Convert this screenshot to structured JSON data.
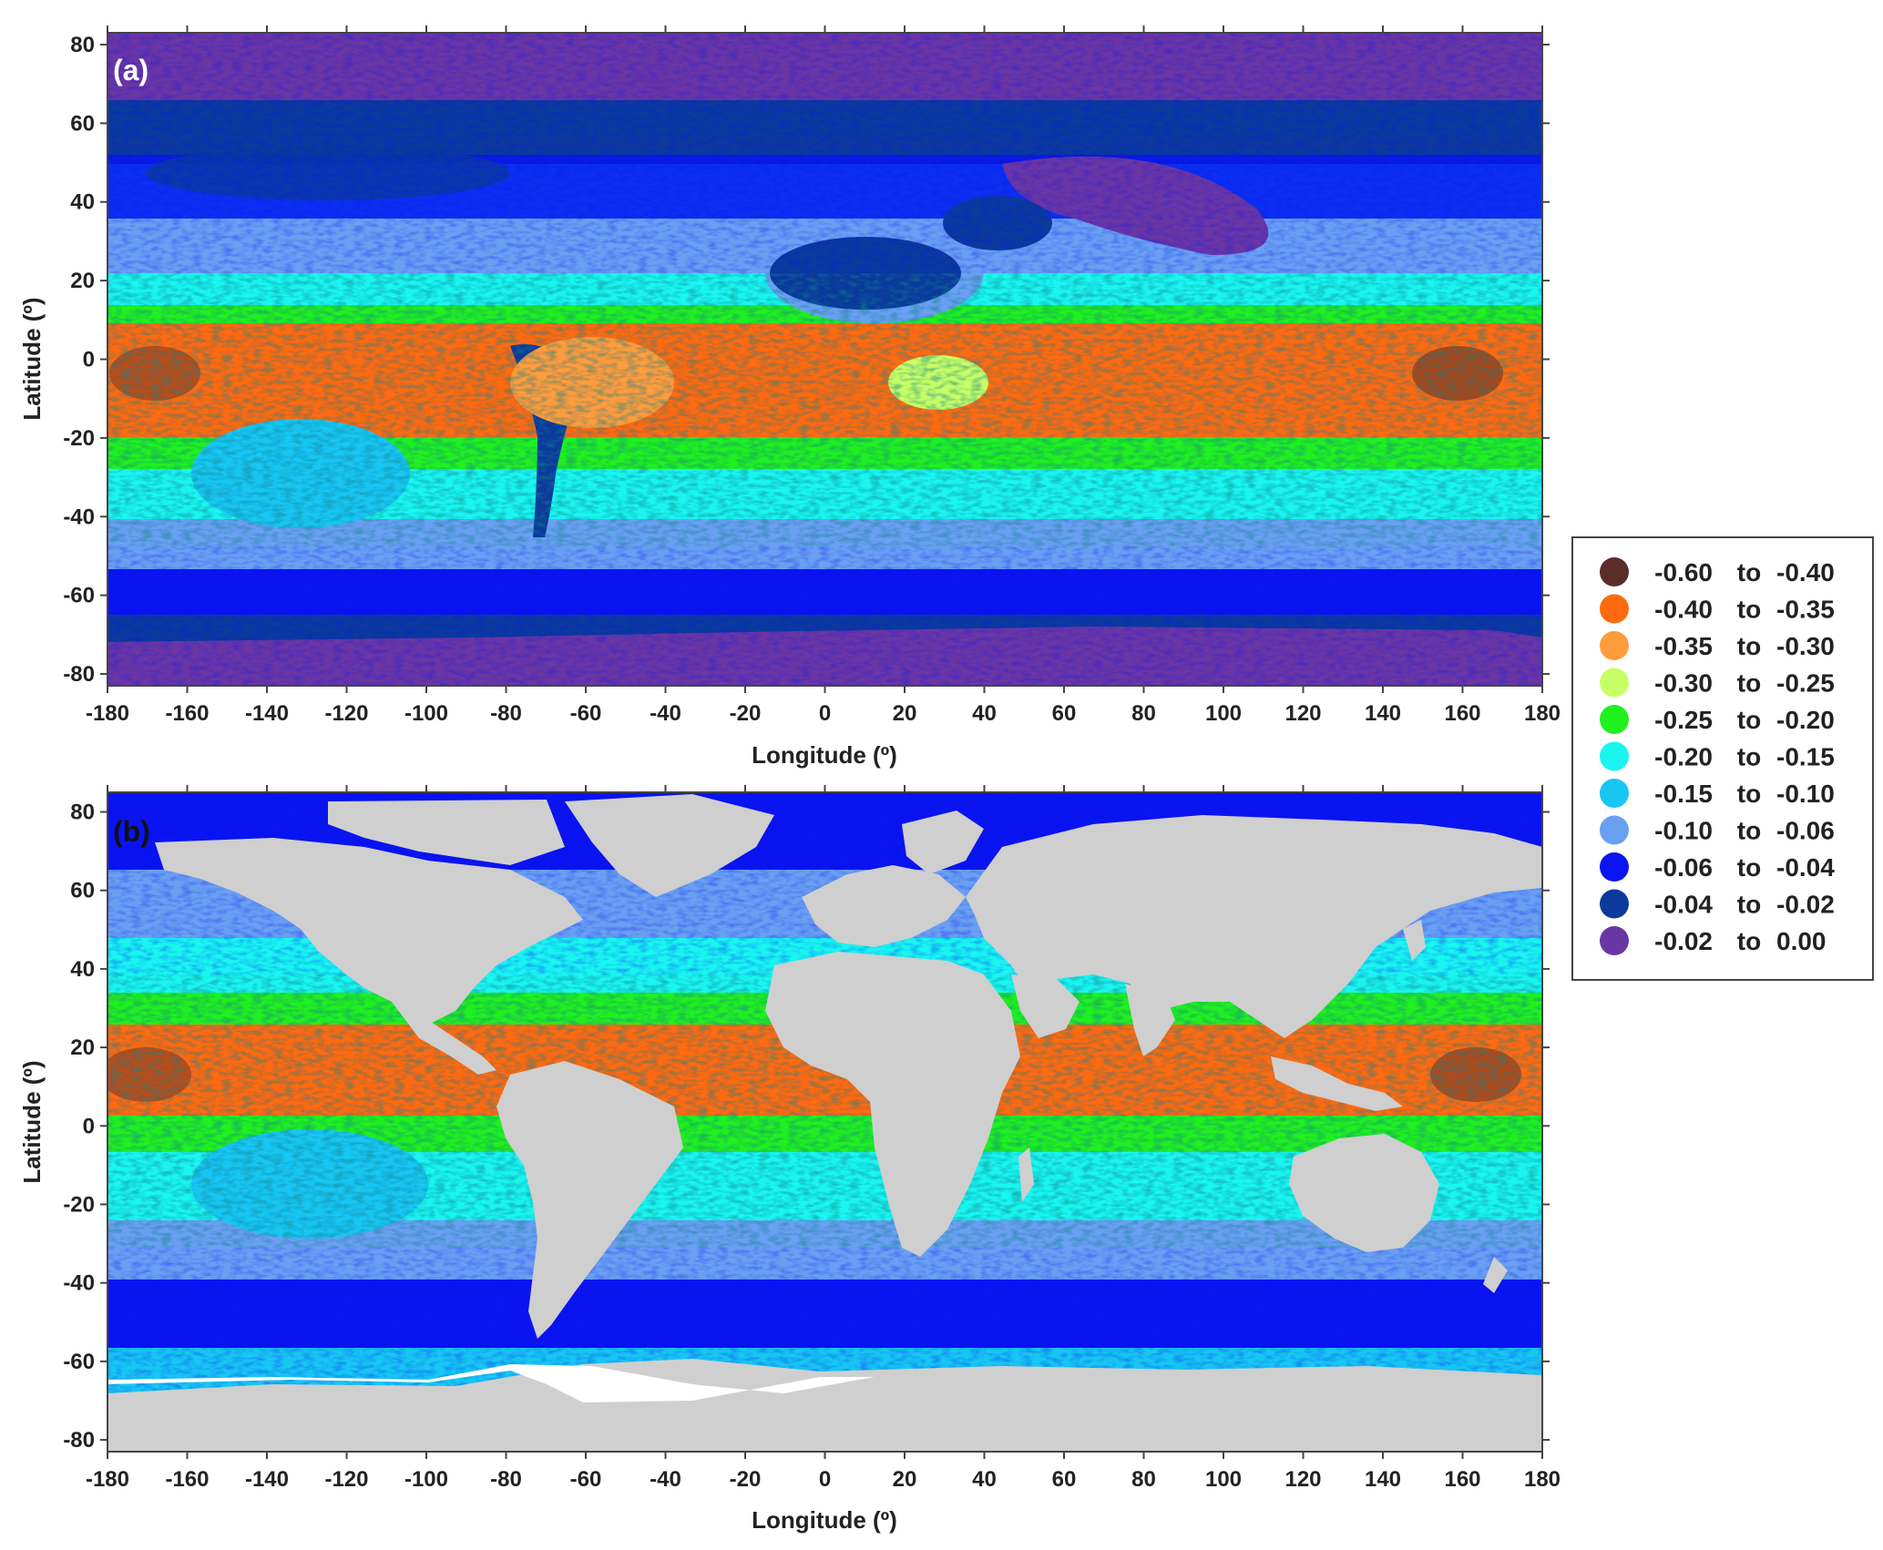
{
  "panels": [
    {
      "id": "a",
      "label": "(a)",
      "label_color": "#ffffff",
      "xlabel": "Longitude (º)",
      "ylabel": "Latitude (º)",
      "xlim": [
        -180,
        180
      ],
      "ylim": [
        -83,
        83
      ],
      "show_land": false
    },
    {
      "id": "b",
      "label": "(b)",
      "label_color": "#111111",
      "xlabel": "Longitude (º)",
      "ylabel": "Latitude (º)",
      "xlim": [
        -180,
        180
      ],
      "ylim": [
        -83,
        85
      ],
      "show_land": true
    }
  ],
  "x_ticks": [
    "-180",
    "-160",
    "-140",
    "-120",
    "-100",
    "-80",
    "-60",
    "-40",
    "-20",
    "0",
    "20",
    "40",
    "60",
    "80",
    "100",
    "120",
    "140",
    "160",
    "180"
  ],
  "y_ticks": [
    "80",
    "60",
    "40",
    "20",
    "0",
    "-20",
    "-40",
    "-60",
    "-80"
  ],
  "legend": [
    {
      "from": "-0.60",
      "to_word": "to",
      "to": "-0.40",
      "color": "#5a2d2a"
    },
    {
      "from": "-0.40",
      "to_word": "to",
      "to": "-0.35",
      "color": "#ff6a10"
    },
    {
      "from": "-0.35",
      "to_word": "to",
      "to": "-0.30",
      "color": "#ff9c3c"
    },
    {
      "from": "-0.30",
      "to_word": "to",
      "to": "-0.25",
      "color": "#c8ff66"
    },
    {
      "from": "-0.25",
      "to_word": "to",
      "to": "-0.20",
      "color": "#20f020"
    },
    {
      "from": "-0.20",
      "to_word": "to",
      "to": "-0.15",
      "color": "#1af5f0"
    },
    {
      "from": "-0.15",
      "to_word": "to",
      "to": "-0.10",
      "color": "#18c6f2"
    },
    {
      "from": "-0.10",
      "to_word": "to",
      "to": "-0.06",
      "color": "#6aa0f2"
    },
    {
      "from": "-0.06",
      "to_word": "to",
      "to": "-0.04",
      "color": "#0a14f0"
    },
    {
      "from": "-0.04",
      "to_word": "to",
      "to": "-0.02",
      "color": "#0b3a9c"
    },
    {
      "from": "-0.02",
      "to_word": "to",
      "to": "0.00",
      "color": "#6a36a4"
    }
  ],
  "land_color": "#cfcfcf",
  "ice_color": "#ffffff"
}
